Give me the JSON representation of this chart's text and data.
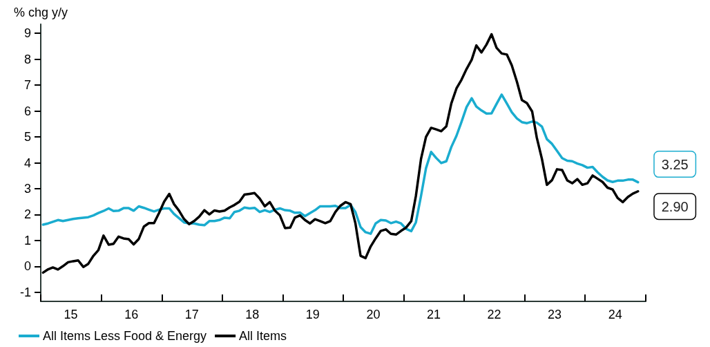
{
  "chart_data": {
    "type": "line",
    "ylabel": "% chg y/y",
    "x": [
      "2015-01",
      "2015-02",
      "2015-03",
      "2015-04",
      "2015-05",
      "2015-06",
      "2015-07",
      "2015-08",
      "2015-09",
      "2015-10",
      "2015-11",
      "2015-12",
      "2016-01",
      "2016-02",
      "2016-03",
      "2016-04",
      "2016-05",
      "2016-06",
      "2016-07",
      "2016-08",
      "2016-09",
      "2016-10",
      "2016-11",
      "2016-12",
      "2017-01",
      "2017-02",
      "2017-03",
      "2017-04",
      "2017-05",
      "2017-06",
      "2017-07",
      "2017-08",
      "2017-09",
      "2017-10",
      "2017-11",
      "2017-12",
      "2018-01",
      "2018-02",
      "2018-03",
      "2018-04",
      "2018-05",
      "2018-06",
      "2018-07",
      "2018-08",
      "2018-09",
      "2018-10",
      "2018-11",
      "2018-12",
      "2019-01",
      "2019-02",
      "2019-03",
      "2019-04",
      "2019-05",
      "2019-06",
      "2019-07",
      "2019-08",
      "2019-09",
      "2019-10",
      "2019-11",
      "2019-12",
      "2020-01",
      "2020-02",
      "2020-03",
      "2020-04",
      "2020-05",
      "2020-06",
      "2020-07",
      "2020-08",
      "2020-09",
      "2020-10",
      "2020-11",
      "2020-12",
      "2021-01",
      "2021-02",
      "2021-03",
      "2021-04",
      "2021-05",
      "2021-06",
      "2021-07",
      "2021-08",
      "2021-09",
      "2021-10",
      "2021-11",
      "2021-12",
      "2022-01",
      "2022-02",
      "2022-03",
      "2022-04",
      "2022-05",
      "2022-06",
      "2022-07",
      "2022-08",
      "2022-09",
      "2022-10",
      "2022-11",
      "2022-12",
      "2023-01",
      "2023-02",
      "2023-03",
      "2023-04",
      "2023-05",
      "2023-06",
      "2023-07",
      "2023-08",
      "2023-09",
      "2023-10",
      "2023-11",
      "2023-12",
      "2024-01",
      "2024-02",
      "2024-03",
      "2024-04",
      "2024-05",
      "2024-06",
      "2024-07",
      "2024-08",
      "2024-09",
      "2024-10",
      "2024-11"
    ],
    "xlim": [
      "2015-01",
      "2025-01"
    ],
    "xticks": [
      {
        "value": "2015-01",
        "label": null
      },
      {
        "value": "2015-07",
        "label": "15"
      },
      {
        "value": "2016-01",
        "label": null
      },
      {
        "value": "2016-07",
        "label": "16"
      },
      {
        "value": "2017-01",
        "label": null
      },
      {
        "value": "2017-07",
        "label": "17"
      },
      {
        "value": "2018-01",
        "label": null
      },
      {
        "value": "2018-07",
        "label": "18"
      },
      {
        "value": "2019-01",
        "label": null
      },
      {
        "value": "2019-07",
        "label": "19"
      },
      {
        "value": "2020-01",
        "label": null
      },
      {
        "value": "2020-07",
        "label": "20"
      },
      {
        "value": "2021-01",
        "label": null
      },
      {
        "value": "2021-07",
        "label": "21"
      },
      {
        "value": "2022-01",
        "label": null
      },
      {
        "value": "2022-07",
        "label": "22"
      },
      {
        "value": "2023-01",
        "label": null
      },
      {
        "value": "2023-07",
        "label": "23"
      },
      {
        "value": "2024-01",
        "label": null
      },
      {
        "value": "2024-07",
        "label": "24"
      },
      {
        "value": "2025-01",
        "label": null
      }
    ],
    "ylim": [
      -1.35,
      9.35
    ],
    "yticks": [
      -1,
      0,
      1,
      2,
      3,
      4,
      5,
      6,
      7,
      8,
      9
    ],
    "grid": false,
    "legend": "bottom left",
    "marker": "none",
    "line_style": "solid",
    "series": [
      {
        "name": "All Items Less Food & Energy",
        "color": "#1aaccf",
        "values": [
          1.61,
          1.66,
          1.72,
          1.79,
          1.75,
          1.79,
          1.83,
          1.86,
          1.88,
          1.9,
          1.97,
          2.06,
          2.14,
          2.24,
          2.14,
          2.15,
          2.25,
          2.25,
          2.15,
          2.32,
          2.26,
          2.19,
          2.12,
          2.19,
          2.24,
          2.24,
          2.03,
          1.86,
          1.7,
          1.66,
          1.66,
          1.61,
          1.59,
          1.75,
          1.75,
          1.79,
          1.88,
          1.86,
          2.1,
          2.15,
          2.27,
          2.24,
          2.26,
          2.1,
          2.17,
          2.1,
          2.19,
          2.24,
          2.17,
          2.15,
          2.07,
          2.08,
          1.94,
          2.06,
          2.17,
          2.32,
          2.32,
          2.32,
          2.34,
          2.25,
          2.25,
          2.37,
          2.1,
          1.52,
          1.32,
          1.26,
          1.66,
          1.79,
          1.77,
          1.67,
          1.73,
          1.66,
          1.45,
          1.36,
          1.7,
          2.72,
          3.79,
          4.42,
          4.19,
          3.99,
          4.06,
          4.61,
          5.04,
          5.57,
          6.15,
          6.49,
          6.17,
          6.02,
          5.9,
          5.91,
          6.27,
          6.63,
          6.29,
          5.95,
          5.71,
          5.57,
          5.53,
          5.59,
          5.55,
          5.4,
          4.91,
          4.73,
          4.46,
          4.18,
          4.08,
          4.06,
          3.97,
          3.91,
          3.81,
          3.84,
          3.64,
          3.46,
          3.32,
          3.26,
          3.31,
          3.31,
          3.35,
          3.35,
          3.25
        ],
        "value_labels": [
          null,
          null,
          null,
          null,
          null,
          null,
          null,
          null,
          null,
          null,
          null,
          null,
          null,
          null,
          null,
          null,
          null,
          null,
          null,
          null,
          null,
          null,
          null,
          null,
          null,
          null,
          null,
          null,
          null,
          null,
          null,
          null,
          null,
          null,
          null,
          null,
          null,
          null,
          null,
          null,
          null,
          null,
          null,
          null,
          null,
          null,
          null,
          null,
          null,
          null,
          null,
          null,
          null,
          null,
          null,
          null,
          null,
          null,
          null,
          null,
          null,
          null,
          null,
          null,
          null,
          null,
          null,
          null,
          null,
          null,
          null,
          null,
          null,
          null,
          null,
          null,
          null,
          null,
          null,
          null,
          null,
          null,
          null,
          null,
          null,
          null,
          null,
          null,
          null,
          null,
          null,
          null,
          null,
          null,
          null,
          null,
          null,
          null,
          null,
          null,
          null,
          null,
          null,
          null,
          null,
          null,
          null,
          null,
          null,
          null,
          null,
          null,
          null,
          null,
          null,
          null,
          null,
          null,
          "3.25"
        ]
      },
      {
        "name": "All Items",
        "color": "#000000",
        "values": [
          -0.24,
          -0.11,
          -0.04,
          -0.12,
          0.01,
          0.16,
          0.2,
          0.23,
          -0.02,
          0.1,
          0.41,
          0.63,
          1.19,
          0.84,
          0.87,
          1.15,
          1.08,
          1.05,
          0.85,
          1.06,
          1.54,
          1.67,
          1.67,
          2.06,
          2.5,
          2.8,
          2.41,
          2.15,
          1.83,
          1.63,
          1.75,
          1.92,
          2.17,
          2.01,
          2.16,
          2.12,
          2.15,
          2.28,
          2.37,
          2.5,
          2.77,
          2.8,
          2.83,
          2.62,
          2.32,
          2.48,
          2.15,
          1.97,
          1.48,
          1.5,
          1.88,
          1.97,
          1.79,
          1.66,
          1.82,
          1.75,
          1.67,
          1.75,
          2.1,
          2.34,
          2.48,
          2.4,
          1.66,
          0.41,
          0.32,
          0.77,
          1.08,
          1.37,
          1.43,
          1.26,
          1.23,
          1.37,
          1.5,
          1.75,
          2.72,
          4.15,
          5.0,
          5.35,
          5.29,
          5.22,
          5.41,
          6.29,
          6.87,
          7.2,
          7.62,
          7.98,
          8.53,
          8.26,
          8.56,
          8.96,
          8.44,
          8.22,
          8.18,
          7.76,
          7.13,
          6.42,
          6.3,
          5.98,
          4.97,
          4.15,
          3.15,
          3.33,
          3.75,
          3.72,
          3.32,
          3.21,
          3.37,
          3.15,
          3.21,
          3.51,
          3.39,
          3.26,
          3.04,
          2.97,
          2.64,
          2.48,
          2.68,
          2.81,
          2.9
        ],
        "value_labels": [
          null,
          null,
          null,
          null,
          null,
          null,
          null,
          null,
          null,
          null,
          null,
          null,
          null,
          null,
          null,
          null,
          null,
          null,
          null,
          null,
          null,
          null,
          null,
          null,
          null,
          null,
          null,
          null,
          null,
          null,
          null,
          null,
          null,
          null,
          null,
          null,
          null,
          null,
          null,
          null,
          null,
          null,
          null,
          null,
          null,
          null,
          null,
          null,
          null,
          null,
          null,
          null,
          null,
          null,
          null,
          null,
          null,
          null,
          null,
          null,
          null,
          null,
          null,
          null,
          null,
          null,
          null,
          null,
          null,
          null,
          null,
          null,
          null,
          null,
          null,
          null,
          null,
          null,
          null,
          null,
          null,
          null,
          null,
          null,
          null,
          null,
          null,
          null,
          null,
          null,
          null,
          null,
          null,
          null,
          null,
          null,
          null,
          null,
          null,
          null,
          null,
          null,
          null,
          null,
          null,
          null,
          null,
          null,
          null,
          null,
          null,
          null,
          null,
          null,
          null,
          null,
          null,
          null,
          "2.90"
        ]
      }
    ]
  }
}
